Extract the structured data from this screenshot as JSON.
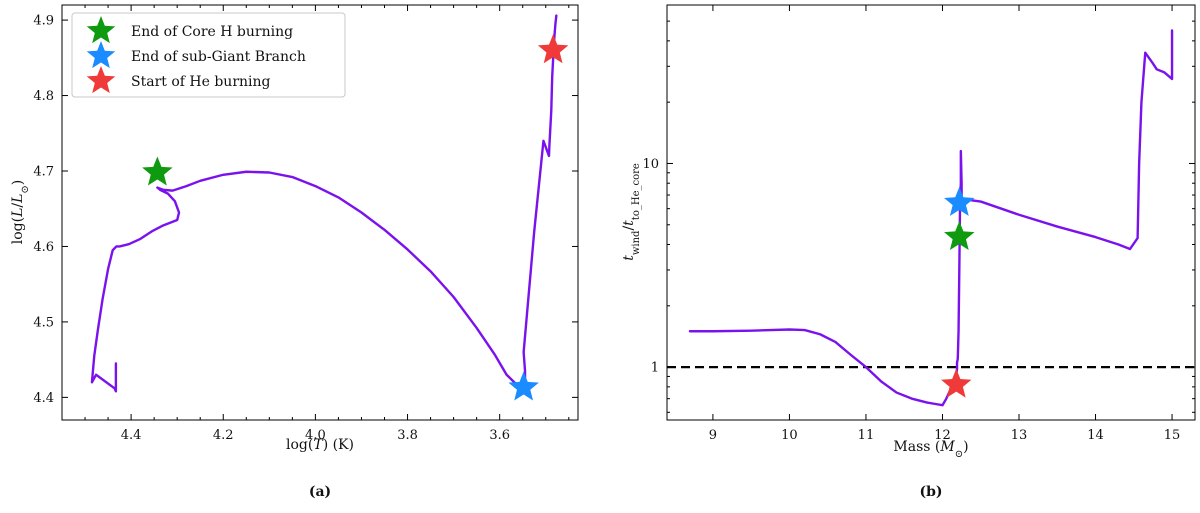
{
  "chart_data": [
    {
      "type": "line",
      "panel_label": "(a)",
      "xlabel": "log(T) (K)",
      "ylabel": "log(L/L⊙)",
      "xlim": [
        4.55,
        3.43
      ],
      "ylim": [
        4.37,
        4.92
      ],
      "x_reversed": true,
      "grid": false,
      "xticks": [
        4.4,
        4.2,
        4.0,
        3.8,
        3.6
      ],
      "xtick_labels": [
        "4.4",
        "4.2",
        "4.0",
        "3.8",
        "3.6"
      ],
      "yticks": [
        4.4,
        4.5,
        4.6,
        4.7,
        4.8,
        4.9
      ],
      "ytick_labels": [
        "4.4",
        "4.5",
        "4.6",
        "4.7",
        "4.8",
        "4.9"
      ],
      "line_color": "#7a12ee",
      "series": [
        {
          "x": [
            4.433,
            4.433,
            4.436,
            4.476,
            4.485,
            4.48,
            4.472,
            4.462,
            4.45,
            4.44,
            4.432,
            4.425,
            4.405,
            4.38,
            4.355,
            4.33,
            4.3,
            4.296,
            4.305,
            4.32,
            4.337,
            4.343,
            4.33,
            4.31,
            4.28,
            4.25,
            4.2,
            4.15,
            4.1,
            4.05,
            4.0,
            3.95,
            3.9,
            3.85,
            3.8,
            3.75,
            3.7,
            3.65,
            3.61,
            3.585,
            3.565,
            3.55,
            3.545,
            3.545,
            3.548,
            3.525,
            3.505,
            3.493,
            3.492,
            3.488,
            3.486,
            3.483,
            3.481,
            3.479,
            3.477
          ],
          "y": [
            4.445,
            4.408,
            4.412,
            4.43,
            4.42,
            4.455,
            4.49,
            4.53,
            4.57,
            4.595,
            4.6,
            4.6,
            4.603,
            4.61,
            4.62,
            4.628,
            4.635,
            4.645,
            4.66,
            4.67,
            4.675,
            4.678,
            4.675,
            4.674,
            4.68,
            4.687,
            4.695,
            4.699,
            4.698,
            4.692,
            4.68,
            4.665,
            4.645,
            4.622,
            4.596,
            4.567,
            4.533,
            4.492,
            4.456,
            4.43,
            4.418,
            4.413,
            4.42,
            4.435,
            4.46,
            4.62,
            4.74,
            4.72,
            4.735,
            4.78,
            4.825,
            4.86,
            4.88,
            4.895,
            4.906
          ]
        }
      ],
      "markers": [
        {
          "label": "End of Core H burning",
          "x": 4.343,
          "y": 4.698,
          "color": "#109a10"
        },
        {
          "label": "End of sub-Giant Branch",
          "x": 3.548,
          "y": 4.413,
          "color": "#1a8cff"
        },
        {
          "label": "Start of He burning",
          "x": 3.484,
          "y": 4.86,
          "color": "#f03a3a"
        }
      ],
      "legend": {
        "placement": "top-left",
        "entries": [
          "End of Core H burning",
          "End of sub-Giant Branch",
          "Start of He burning"
        ]
      }
    },
    {
      "type": "line",
      "panel_label": "(b)",
      "xlabel": "Mass (M⊙)",
      "ylabel": "t_wind/t_to_He_core",
      "xlim": [
        8.4,
        15.3
      ],
      "ylim": [
        0.55,
        60
      ],
      "yscale": "log",
      "grid": false,
      "xticks": [
        9,
        10,
        11,
        12,
        13,
        14,
        15
      ],
      "xtick_labels": [
        "9",
        "10",
        "11",
        "12",
        "13",
        "14",
        "15"
      ],
      "yticks": [
        1,
        10
      ],
      "ytick_labels": [
        "1",
        "10"
      ],
      "line_color": "#7a12ee",
      "hline": {
        "y": 1.0,
        "style": "dashed",
        "color": "#000000"
      },
      "series": [
        {
          "x": [
            8.7,
            9.0,
            9.5,
            10.0,
            10.2,
            10.4,
            10.6,
            10.8,
            11.0,
            11.2,
            11.4,
            11.6,
            11.8,
            11.9,
            12.0,
            12.05,
            12.1,
            12.15,
            12.18,
            12.19,
            12.19,
            12.2,
            12.21,
            12.22,
            12.23,
            12.24,
            12.24,
            12.25,
            12.25
          ],
          "y": [
            1.5,
            1.5,
            1.51,
            1.53,
            1.52,
            1.45,
            1.33,
            1.15,
            1.0,
            0.85,
            0.75,
            0.7,
            0.67,
            0.66,
            0.65,
            0.7,
            0.77,
            0.84,
            0.92,
            0.98,
            1.05,
            1.1,
            1.5,
            3.0,
            6.6,
            8.0,
            11.5,
            8.0,
            6.6
          ]
        },
        {
          "x": [
            12.25,
            12.5,
            13.0,
            13.5,
            14.0,
            14.3,
            14.45,
            14.55,
            14.57,
            14.6,
            14.65,
            14.75,
            14.8,
            14.9,
            15.0,
            15.0,
            15.0
          ],
          "y": [
            6.7,
            6.5,
            5.6,
            4.9,
            4.35,
            4.0,
            3.8,
            4.3,
            10.0,
            20.0,
            35.0,
            31.0,
            29.0,
            28.0,
            26.0,
            35.0,
            45.0
          ]
        }
      ],
      "markers": [
        {
          "label": "End of Core H burning",
          "x": 12.22,
          "y": 4.35,
          "color": "#109a10"
        },
        {
          "label": "End of sub-Giant Branch",
          "x": 12.22,
          "y": 6.4,
          "color": "#1a8cff"
        },
        {
          "label": "Start of He burning",
          "x": 12.18,
          "y": 0.82,
          "color": "#f03a3a"
        }
      ]
    }
  ]
}
